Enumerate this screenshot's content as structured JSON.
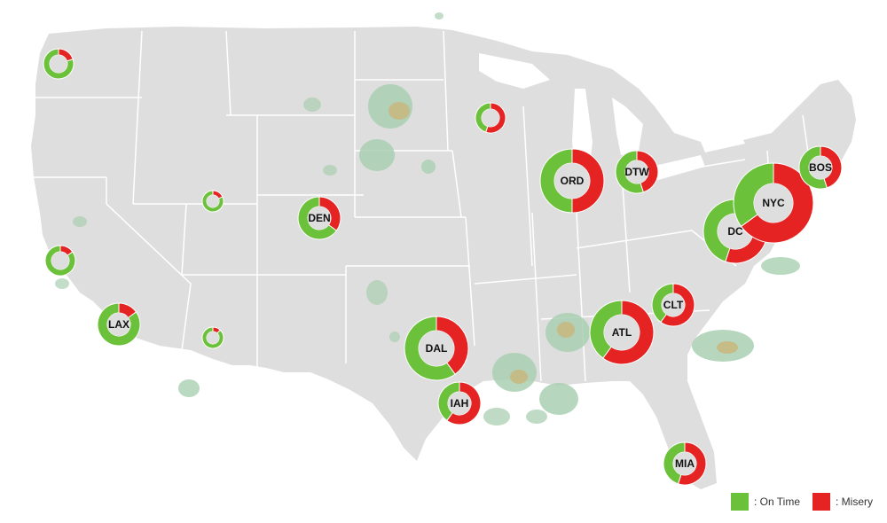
{
  "colors": {
    "on_time": "#6cc13a",
    "misery": "#e52323",
    "land": "#dedede",
    "state_border": "#ffffff",
    "label": "#111111"
  },
  "legend": {
    "on_time_label": ": On Time",
    "misery_label": ": Misery"
  },
  "airports": [
    {
      "id": "seattle",
      "label": "",
      "misery_pct": 0.2,
      "size": "small"
    },
    {
      "id": "san-francisco",
      "label": "",
      "misery_pct": 0.15,
      "size": "small"
    },
    {
      "id": "lax",
      "label": "LAX",
      "misery_pct": 0.15,
      "size": "medium"
    },
    {
      "id": "salt-lake",
      "label": "",
      "misery_pct": 0.18,
      "size": "xsmall"
    },
    {
      "id": "phoenix",
      "label": "",
      "misery_pct": 0.12,
      "size": "xsmall"
    },
    {
      "id": "den",
      "label": "DEN",
      "misery_pct": 0.35,
      "size": "medium"
    },
    {
      "id": "dal",
      "label": "DAL",
      "misery_pct": 0.4,
      "size": "large"
    },
    {
      "id": "iah",
      "label": "IAH",
      "misery_pct": 0.6,
      "size": "medium"
    },
    {
      "id": "minneapolis",
      "label": "",
      "misery_pct": 0.55,
      "size": "small"
    },
    {
      "id": "ord",
      "label": "ORD",
      "misery_pct": 0.5,
      "size": "large"
    },
    {
      "id": "dtw",
      "label": "DTW",
      "misery_pct": 0.45,
      "size": "medium"
    },
    {
      "id": "atl",
      "label": "ATL",
      "misery_pct": 0.6,
      "size": "large"
    },
    {
      "id": "clt",
      "label": "CLT",
      "misery_pct": 0.6,
      "size": "medium"
    },
    {
      "id": "mia",
      "label": "MIA",
      "misery_pct": 0.55,
      "size": "medium"
    },
    {
      "id": "dc",
      "label": "DC",
      "misery_pct": 0.55,
      "size": "large"
    },
    {
      "id": "nyc",
      "label": "NYC",
      "misery_pct": 0.65,
      "size": "xlarge"
    },
    {
      "id": "bos",
      "label": "BOS",
      "misery_pct": 0.45,
      "size": "medium"
    }
  ]
}
